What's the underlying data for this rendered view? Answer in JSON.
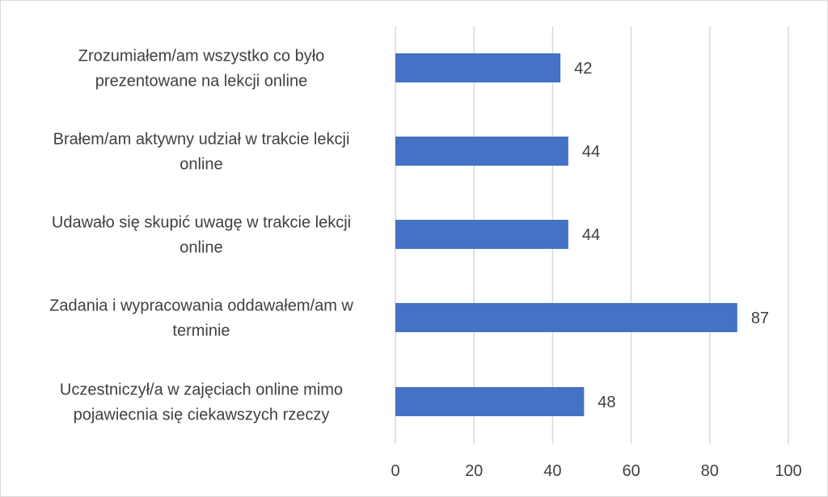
{
  "chart_data": {
    "type": "bar",
    "orientation": "horizontal",
    "categories": [
      "Zrozumiałem/am wszystko co było prezentowane na lekcji online",
      "Brałem/am aktywny udział w trakcie lekcji online",
      "Udawało się skupić uwagę w trakcie lekcji online",
      "Zadania i wypracowania oddawałem/am w terminie",
      "Uczestniczył/a w zajęciach online mimo pojawiecnia się ciekawszych rzeczy"
    ],
    "category_lines": [
      [
        "Zrozumiałem/am wszystko co było",
        "prezentowane na lekcji online"
      ],
      [
        "Brałem/am aktywny udział w trakcie lekcji",
        "online"
      ],
      [
        "Udawało się skupić uwagę w trakcie lekcji",
        "online"
      ],
      [
        "Zadania i wypracowania oddawałem/am w",
        "terminie"
      ],
      [
        "Uczestniczył/a w zajęciach online mimo",
        "pojawiecnia się ciekawszych rzeczy"
      ]
    ],
    "values": [
      42,
      44,
      44,
      87,
      48
    ],
    "data_labels": [
      "42",
      "44",
      "44",
      "87",
      "48"
    ],
    "xlim": [
      0,
      100
    ],
    "x_ticks": [
      0,
      20,
      40,
      60,
      80,
      100
    ],
    "x_tick_labels": [
      "0",
      "20",
      "40",
      "60",
      "80",
      "100"
    ],
    "grid": true,
    "legend": "none",
    "title": "",
    "xlabel": "",
    "ylabel": "",
    "colors": {
      "bar": "#4472c4",
      "grid": "#d9d9d9",
      "text": "#404040",
      "border": "#d9d9d9"
    }
  }
}
